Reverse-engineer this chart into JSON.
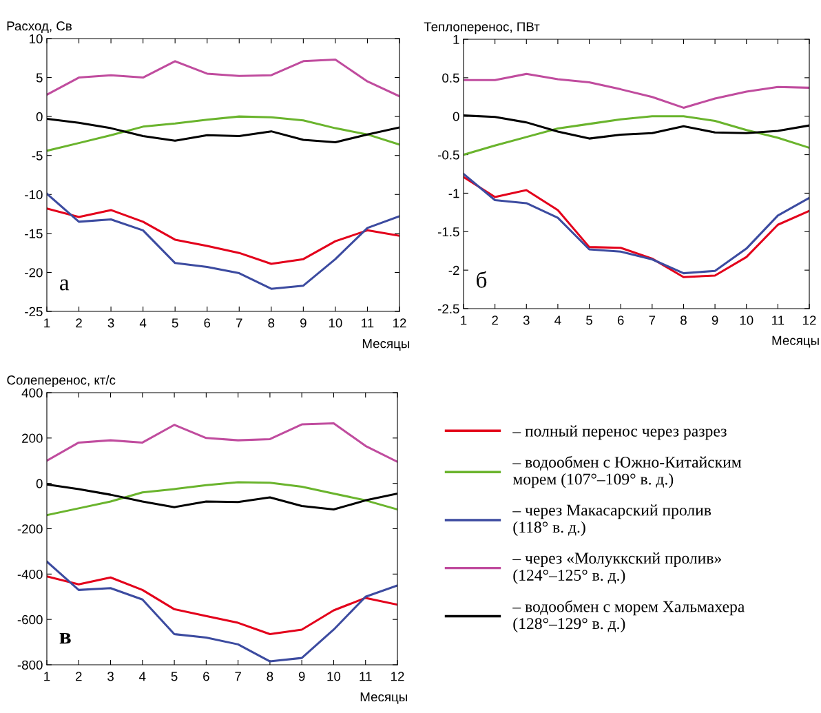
{
  "chart_data": [
    {
      "type": "line",
      "ylabel": "Расход, Св",
      "xlabel": "Месяцы",
      "annotations": [
        "а"
      ],
      "x": [
        1,
        2,
        3,
        4,
        5,
        6,
        7,
        8,
        9,
        10,
        11,
        12
      ],
      "xlim": [
        1,
        12
      ],
      "xticks": [
        1,
        2,
        3,
        4,
        5,
        6,
        7,
        8,
        9,
        10,
        11,
        12
      ],
      "ylim": [
        -25,
        10
      ],
      "yticks": [
        -25,
        -20,
        -15,
        -10,
        -5,
        0,
        5,
        10
      ],
      "grid": false,
      "legend": false,
      "series": [
        {
          "color": "#e3001b",
          "values": [
            -11.8,
            -12.9,
            -12.0,
            -13.5,
            -15.8,
            -16.6,
            -17.5,
            -18.9,
            -18.3,
            -16.0,
            -14.6,
            -15.3
          ]
        },
        {
          "color": "#6ab42d",
          "values": [
            -4.4,
            -3.4,
            -2.4,
            -1.3,
            -0.9,
            -0.4,
            0,
            -0.1,
            -0.5,
            -1.5,
            -2.3,
            -3.6
          ]
        },
        {
          "color": "#3c4ba0",
          "values": [
            -9.9,
            -13.5,
            -13.2,
            -14.6,
            -18.8,
            -19.3,
            -20.1,
            -22.1,
            -21.7,
            -18.3,
            -14.3,
            -12.8
          ]
        },
        {
          "color": "#c04c9e",
          "values": [
            2.8,
            5.0,
            5.3,
            5.0,
            7.1,
            5.5,
            5.2,
            5.3,
            7.1,
            7.3,
            4.5,
            2.6
          ]
        },
        {
          "color": "#000000",
          "values": [
            -0.3,
            -0.8,
            -1.5,
            -2.5,
            -3.1,
            -2.4,
            -2.5,
            -1.9,
            -3.0,
            -3.3,
            -2.3,
            -1.4
          ]
        }
      ]
    },
    {
      "type": "line",
      "ylabel": "Теплоперенос, ПВт",
      "xlabel": "Месяцы",
      "annotations": [
        "б"
      ],
      "x": [
        1,
        2,
        3,
        4,
        5,
        6,
        7,
        8,
        9,
        10,
        11,
        12
      ],
      "xlim": [
        1,
        12
      ],
      "xticks": [
        1,
        2,
        3,
        4,
        5,
        6,
        7,
        8,
        9,
        10,
        11,
        12
      ],
      "ylim": [
        -2.5,
        1
      ],
      "yticks": [
        -2.5,
        -2,
        -1.5,
        -1,
        -0.5,
        0,
        0.5,
        1
      ],
      "grid": false,
      "legend": false,
      "series": [
        {
          "color": "#e3001b",
          "values": [
            -0.79,
            -1.05,
            -0.96,
            -1.22,
            -1.7,
            -1.71,
            -1.85,
            -2.09,
            -2.07,
            -1.83,
            -1.41,
            -1.23
          ]
        },
        {
          "color": "#6ab42d",
          "values": [
            -0.5,
            -0.38,
            -0.27,
            -0.16,
            -0.1,
            -0.04,
            0,
            0,
            -0.06,
            -0.18,
            -0.28,
            -0.41
          ]
        },
        {
          "color": "#3c4ba0",
          "values": [
            -0.75,
            -1.09,
            -1.13,
            -1.32,
            -1.73,
            -1.76,
            -1.86,
            -2.04,
            -2.01,
            -1.72,
            -1.29,
            -1.06
          ]
        },
        {
          "color": "#c04c9e",
          "values": [
            0.47,
            0.47,
            0.55,
            0.48,
            0.44,
            0.35,
            0.25,
            0.11,
            0.23,
            0.32,
            0.38,
            0.37
          ]
        },
        {
          "color": "#000000",
          "values": [
            0.01,
            -0.01,
            -0.08,
            -0.2,
            -0.29,
            -0.24,
            -0.22,
            -0.13,
            -0.21,
            -0.22,
            -0.19,
            -0.12
          ]
        }
      ]
    },
    {
      "type": "line",
      "ylabel": "Солеперенос, кт/с",
      "xlabel": "Месяцы",
      "annotations": [
        "в"
      ],
      "x": [
        1,
        2,
        3,
        4,
        5,
        6,
        7,
        8,
        9,
        10,
        11,
        12
      ],
      "xlim": [
        1,
        12
      ],
      "xticks": [
        1,
        2,
        3,
        4,
        5,
        6,
        7,
        8,
        9,
        10,
        11,
        12
      ],
      "ylim": [
        -800,
        400
      ],
      "yticks": [
        -800,
        -600,
        -400,
        -200,
        0,
        200,
        400
      ],
      "grid": false,
      "legend": "right",
      "series": [
        {
          "name": "– полный перенос через разрез",
          "color": "#e3001b",
          "values": [
            -410,
            -445,
            -415,
            -470,
            -555,
            -585,
            -615,
            -665,
            -645,
            -560,
            -505,
            -535
          ]
        },
        {
          "name": "– водообмен с Южно-Китайским\nморем (107°–109° в. д.)",
          "color": "#6ab42d",
          "values": [
            -140,
            -110,
            -80,
            -40,
            -25,
            -8,
            5,
            3,
            -15,
            -45,
            -75,
            -115
          ]
        },
        {
          "name": "– через Макасарский пролив\n(118° в. д.)",
          "color": "#3c4ba0",
          "values": [
            -345,
            -470,
            -462,
            -512,
            -665,
            -680,
            -710,
            -785,
            -770,
            -645,
            -500,
            -450
          ]
        },
        {
          "name": "– через «Молуккский пролив»\n(124°–125° в. д.)",
          "color": "#c04c9e",
          "values": [
            100,
            180,
            190,
            180,
            258,
            200,
            190,
            195,
            260,
            265,
            165,
            95
          ]
        },
        {
          "name": "– водообмен с морем Хальмахера\n(128°–129° в. д.)",
          "color": "#000000",
          "values": [
            -5,
            -25,
            -50,
            -80,
            -105,
            -80,
            -82,
            -62,
            -100,
            -115,
            -75,
            -45
          ]
        }
      ]
    }
  ]
}
